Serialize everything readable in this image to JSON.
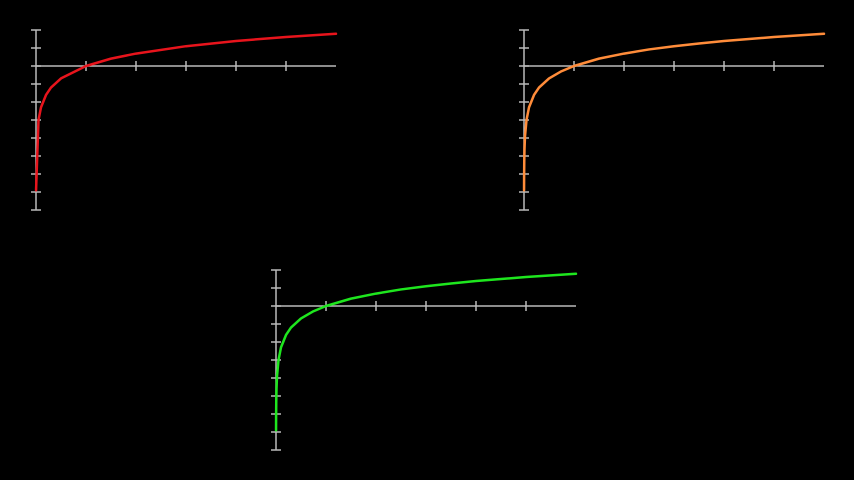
{
  "chart_data": [
    {
      "type": "line",
      "x": [
        0.001,
        0.05,
        0.1,
        0.2,
        0.3,
        0.5,
        1,
        1.5,
        2,
        3,
        4,
        5,
        6
      ],
      "series": [
        {
          "color": "#e8141c",
          "values": [
            -6.91,
            -3.0,
            -2.3,
            -1.61,
            -1.2,
            -0.69,
            0,
            0.41,
            0.69,
            1.1,
            1.39,
            1.61,
            1.79
          ]
        }
      ],
      "xlim": [
        0,
        6
      ],
      "ylim": [
        -8,
        2
      ],
      "xticks": [
        1,
        2,
        3,
        4,
        5
      ],
      "yticks": [
        -8,
        -7,
        -6,
        -5,
        -4,
        -3,
        -2,
        -1,
        0,
        1,
        2
      ]
    },
    {
      "type": "line",
      "x": [
        0.001,
        0.002,
        0.005,
        0.01,
        0.02,
        0.05,
        0.1,
        0.2,
        0.3,
        0.5,
        0.75,
        1,
        1.5,
        2,
        2.5,
        3,
        3.5,
        4,
        4.5,
        5,
        5.5,
        6
      ],
      "series": [
        {
          "color": "#ff8c3a",
          "values": [
            -6.91,
            -6.21,
            -5.3,
            -4.61,
            -3.91,
            -3.0,
            -2.3,
            -1.61,
            -1.2,
            -0.69,
            -0.29,
            0,
            0.41,
            0.69,
            0.92,
            1.1,
            1.25,
            1.39,
            1.5,
            1.61,
            1.7,
            1.79
          ]
        }
      ],
      "xlim": [
        0,
        6
      ],
      "ylim": [
        -8,
        2
      ],
      "xticks": [
        1,
        2,
        3,
        4,
        5
      ],
      "yticks": [
        -8,
        -7,
        -6,
        -5,
        -4,
        -3,
        -2,
        -1,
        0,
        1,
        2
      ]
    },
    {
      "type": "line",
      "x": [
        0.001,
        0.002,
        0.005,
        0.01,
        0.02,
        0.05,
        0.1,
        0.2,
        0.3,
        0.5,
        0.75,
        1,
        1.5,
        2,
        2.5,
        3,
        3.5,
        4,
        4.5,
        5,
        5.5,
        6
      ],
      "series": [
        {
          "color": "#1ee61e",
          "values": [
            -6.91,
            -6.21,
            -5.3,
            -4.61,
            -3.91,
            -3.0,
            -2.3,
            -1.61,
            -1.2,
            -0.69,
            -0.29,
            0,
            0.41,
            0.69,
            0.92,
            1.1,
            1.25,
            1.39,
            1.5,
            1.61,
            1.7,
            1.79
          ]
        }
      ],
      "xlim": [
        0,
        6
      ],
      "ylim": [
        -8,
        2
      ],
      "xticks": [
        1,
        2,
        3,
        4,
        5
      ],
      "yticks": [
        -8,
        -7,
        -6,
        -5,
        -4,
        -3,
        -2,
        -1,
        0,
        1,
        2
      ]
    }
  ]
}
